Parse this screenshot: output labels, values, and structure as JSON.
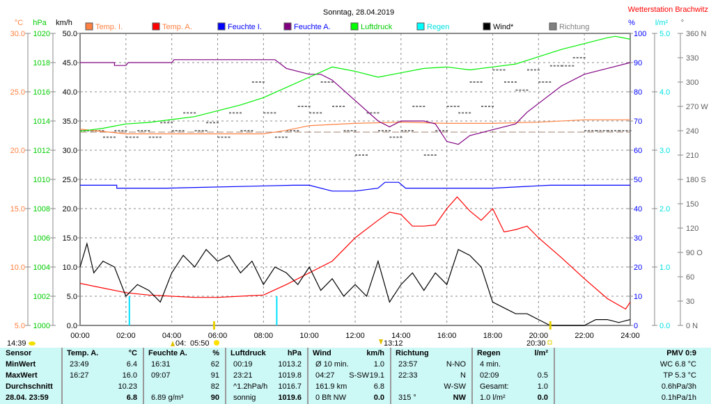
{
  "header": {
    "title": "Sonntag, 28.04.2019",
    "station": "Wetterstation Brachwitz"
  },
  "chart_data": {
    "type": "line",
    "title": "Sonntag, 28.04.2019",
    "xlim": [
      0,
      24
    ],
    "x_ticks": [
      "00:00",
      "02:00",
      "04:00",
      "06:00",
      "08:00",
      "10:00",
      "12:00",
      "14:00",
      "16:00",
      "18:00",
      "20:00",
      "22:00",
      "24:00"
    ],
    "axes": {
      "temp": {
        "unit": "°C",
        "range": [
          5,
          30
        ],
        "ticks": [
          "30.0",
          "25.0",
          "20.0",
          "15.0",
          "10.0",
          "5.0"
        ],
        "color": "#ff8040"
      },
      "pressure": {
        "unit": "hPa",
        "range": [
          1000,
          1020
        ],
        "ticks": [
          "1020",
          "1018",
          "1016",
          "1014",
          "1012",
          "1010",
          "1008",
          "1006",
          "1004",
          "1002",
          "1000"
        ],
        "color": "#00cc00"
      },
      "wind": {
        "unit": "km/h",
        "range": [
          0,
          50
        ],
        "ticks": [
          "50.0",
          "45.0",
          "40.0",
          "35.0",
          "30.0",
          "25.0",
          "20.0",
          "15.0",
          "10.0",
          "5.0",
          "0.0"
        ],
        "color": "#000000"
      },
      "humidity": {
        "unit": "%",
        "range": [
          0,
          100
        ],
        "ticks": [
          "100",
          "90",
          "80",
          "70",
          "60",
          "50",
          "40",
          "30",
          "20",
          "10",
          "0"
        ],
        "color": "#0000ff"
      },
      "rain": {
        "unit": "l/m²",
        "range": [
          0,
          5
        ],
        "ticks": [
          "5.0",
          "4.0",
          "3.0",
          "2.0",
          "1.0",
          "0.0"
        ],
        "color": "#00e0e0"
      },
      "direction": {
        "unit": "°",
        "range": [
          0,
          360
        ],
        "ticks": [
          "360 N",
          "330",
          "300",
          "270 W",
          "240",
          "210",
          "180 S",
          "150",
          "120",
          "90 O",
          "60",
          "30",
          "0 N"
        ],
        "color": "#606060"
      }
    },
    "legend": [
      {
        "name": "Temp. I.",
        "color": "#ff8040"
      },
      {
        "name": "Temp. A.",
        "color": "#ff0000"
      },
      {
        "name": "Feuchte I.",
        "color": "#0000ff"
      },
      {
        "name": "Feuchte A.",
        "color": "#800080"
      },
      {
        "name": "Luftdruck",
        "color": "#00ff00"
      },
      {
        "name": "Regen",
        "color": "#00ffff"
      },
      {
        "name": "Wind*",
        "color": "#000000"
      },
      {
        "name": "Richtung",
        "color": "#808080"
      }
    ],
    "series": [
      {
        "name": "Temp. I.",
        "axis": "temp",
        "color": "#ff8040",
        "points": [
          [
            0,
            21.8
          ],
          [
            1,
            21.6
          ],
          [
            2,
            21.4
          ],
          [
            4,
            21.4
          ],
          [
            6,
            21.4
          ],
          [
            8,
            21.4
          ],
          [
            9,
            21.7
          ],
          [
            10,
            22.1
          ],
          [
            12,
            22.3
          ],
          [
            14,
            22.4
          ],
          [
            16,
            22.3
          ],
          [
            18,
            22.3
          ],
          [
            20,
            22.4
          ],
          [
            22,
            22.6
          ],
          [
            24,
            22.6
          ]
        ]
      },
      {
        "name": "Temp. A.",
        "axis": "temp",
        "color": "#ff0000",
        "points": [
          [
            0,
            8.6
          ],
          [
            1,
            8.2
          ],
          [
            2,
            7.8
          ],
          [
            3,
            7.6
          ],
          [
            4,
            7.5
          ],
          [
            5,
            7.4
          ],
          [
            6,
            7.4
          ],
          [
            7,
            7.5
          ],
          [
            8,
            7.6
          ],
          [
            9,
            8.5
          ],
          [
            10,
            9.5
          ],
          [
            11,
            10.5
          ],
          [
            12,
            12.5
          ],
          [
            13,
            14.0
          ],
          [
            13.5,
            14.7
          ],
          [
            14,
            14.5
          ],
          [
            14.5,
            13.5
          ],
          [
            15,
            13.5
          ],
          [
            15.5,
            13.6
          ],
          [
            16,
            15.0
          ],
          [
            16.45,
            16.0
          ],
          [
            17,
            14.8
          ],
          [
            17.5,
            14.0
          ],
          [
            18,
            15.0
          ],
          [
            18.5,
            13.0
          ],
          [
            19,
            13.2
          ],
          [
            19.5,
            13.5
          ],
          [
            20,
            12.5
          ],
          [
            21,
            10.8
          ],
          [
            22,
            9.0
          ],
          [
            23,
            7.3
          ],
          [
            23.8,
            6.4
          ],
          [
            24,
            7.0
          ]
        ]
      },
      {
        "name": "Feuchte I.",
        "axis": "humidity",
        "color": "#0000ff",
        "points": [
          [
            0,
            48
          ],
          [
            1.6,
            48
          ],
          [
            1.6,
            47
          ],
          [
            3.8,
            47
          ],
          [
            9.3,
            48
          ],
          [
            10,
            48
          ],
          [
            11,
            46
          ],
          [
            12,
            46
          ],
          [
            13,
            47
          ],
          [
            13.3,
            49
          ],
          [
            13.9,
            49
          ],
          [
            14.2,
            47
          ],
          [
            18,
            47
          ],
          [
            20.5,
            48
          ],
          [
            24,
            48
          ]
        ]
      },
      {
        "name": "Feuchte A.",
        "axis": "humidity",
        "color": "#800080",
        "points": [
          [
            0,
            90
          ],
          [
            1.5,
            90
          ],
          [
            1.5,
            89
          ],
          [
            2,
            89
          ],
          [
            2.1,
            90
          ],
          [
            4,
            90
          ],
          [
            4.1,
            91
          ],
          [
            8.5,
            91
          ],
          [
            9,
            88
          ],
          [
            10,
            86
          ],
          [
            10.5,
            86
          ],
          [
            11,
            84
          ],
          [
            12,
            77
          ],
          [
            13,
            70
          ],
          [
            13.5,
            68
          ],
          [
            14,
            70
          ],
          [
            15,
            70
          ],
          [
            15.5,
            69
          ],
          [
            16,
            63
          ],
          [
            16.5,
            62
          ],
          [
            17,
            65
          ],
          [
            18,
            67
          ],
          [
            19,
            69
          ],
          [
            19.5,
            73
          ],
          [
            20,
            76
          ],
          [
            21,
            82
          ],
          [
            22,
            86
          ],
          [
            23,
            88
          ],
          [
            24,
            90
          ]
        ]
      },
      {
        "name": "Luftdruck",
        "axis": "pressure",
        "color": "#00ee00",
        "points": [
          [
            0,
            1013.3
          ],
          [
            1,
            1013.5
          ],
          [
            2,
            1013.8
          ],
          [
            3,
            1013.9
          ],
          [
            4,
            1014.1
          ],
          [
            5,
            1014.3
          ],
          [
            6,
            1014.7
          ],
          [
            7,
            1015.1
          ],
          [
            8,
            1015.6
          ],
          [
            9,
            1016.3
          ],
          [
            10,
            1017.0
          ],
          [
            11,
            1017.7
          ],
          [
            12,
            1017.4
          ],
          [
            13,
            1017.0
          ],
          [
            14,
            1017.3
          ],
          [
            15,
            1017.6
          ],
          [
            16,
            1017.7
          ],
          [
            17,
            1017.5
          ],
          [
            18,
            1017.7
          ],
          [
            19,
            1017.9
          ],
          [
            20,
            1018.4
          ],
          [
            21,
            1018.9
          ],
          [
            22,
            1019.3
          ],
          [
            23,
            1019.7
          ],
          [
            23.35,
            1019.8
          ],
          [
            24,
            1019.6
          ]
        ]
      },
      {
        "name": "Wind*",
        "axis": "wind",
        "color": "#000000",
        "points": [
          [
            0,
            10
          ],
          [
            0.3,
            14
          ],
          [
            0.6,
            9
          ],
          [
            1,
            11
          ],
          [
            1.5,
            10
          ],
          [
            2,
            5
          ],
          [
            2.5,
            7
          ],
          [
            3,
            6
          ],
          [
            3.5,
            4
          ],
          [
            4,
            9
          ],
          [
            4.5,
            12
          ],
          [
            5,
            10
          ],
          [
            5.5,
            13
          ],
          [
            6,
            11
          ],
          [
            6.5,
            12
          ],
          [
            7,
            9
          ],
          [
            7.5,
            11
          ],
          [
            8,
            7
          ],
          [
            8.5,
            10
          ],
          [
            9,
            9
          ],
          [
            9.5,
            7
          ],
          [
            10,
            10
          ],
          [
            10.5,
            6
          ],
          [
            11,
            8
          ],
          [
            11.5,
            5
          ],
          [
            12,
            7
          ],
          [
            12.5,
            5
          ],
          [
            13,
            11
          ],
          [
            13.5,
            4
          ],
          [
            14,
            7
          ],
          [
            14.5,
            9
          ],
          [
            15,
            6
          ],
          [
            15.5,
            9
          ],
          [
            16,
            7
          ],
          [
            16.5,
            13
          ],
          [
            17,
            12
          ],
          [
            17.5,
            10
          ],
          [
            18,
            4
          ],
          [
            18.5,
            3
          ],
          [
            19,
            2
          ],
          [
            19.5,
            2
          ],
          [
            20,
            1
          ],
          [
            20.5,
            0
          ],
          [
            21,
            0
          ],
          [
            21.5,
            0
          ],
          [
            22,
            0
          ],
          [
            22.5,
            1
          ],
          [
            23,
            1
          ],
          [
            23.5,
            0.5
          ],
          [
            24,
            1
          ]
        ]
      }
    ],
    "rain": [
      {
        "x": 2.15,
        "value": 0.5
      },
      {
        "x": 8.58,
        "value": 0.5
      }
    ],
    "direction_points": [
      [
        0,
        240
      ],
      [
        0.5,
        240
      ],
      [
        1,
        232
      ],
      [
        1.5,
        240
      ],
      [
        2,
        232
      ],
      [
        2.5,
        240
      ],
      [
        3,
        232
      ],
      [
        3.5,
        250
      ],
      [
        4,
        240
      ],
      [
        4.5,
        262
      ],
      [
        5,
        240
      ],
      [
        5.5,
        250
      ],
      [
        6,
        232
      ],
      [
        6.5,
        262
      ],
      [
        7,
        240
      ],
      [
        7.5,
        300
      ],
      [
        8,
        262
      ],
      [
        8.5,
        232
      ],
      [
        9,
        240
      ],
      [
        9.5,
        270
      ],
      [
        10,
        262
      ],
      [
        10.5,
        300
      ],
      [
        11,
        270
      ],
      [
        11.5,
        240
      ],
      [
        12,
        210
      ],
      [
        12.5,
        262
      ],
      [
        13,
        240
      ],
      [
        13.5,
        232
      ],
      [
        14,
        240
      ],
      [
        14.5,
        270
      ],
      [
        15,
        210
      ],
      [
        15.5,
        240
      ],
      [
        16,
        270
      ],
      [
        16.5,
        262
      ],
      [
        17,
        300
      ],
      [
        17.5,
        270
      ],
      [
        18,
        315
      ],
      [
        18.5,
        300
      ],
      [
        19,
        290
      ],
      [
        19.5,
        315
      ],
      [
        20,
        300
      ],
      [
        20.5,
        320
      ],
      [
        21,
        320
      ],
      [
        21.5,
        330
      ],
      [
        22,
        240
      ],
      [
        22.5,
        240
      ],
      [
        23,
        240
      ],
      [
        23.5,
        240
      ]
    ],
    "markers": [
      {
        "label": "14:39"
      },
      {
        "label": "04:"
      },
      {
        "label": "05:50"
      },
      {
        "label": "13:12"
      },
      {
        "label": "20:30"
      }
    ]
  },
  "table": {
    "sensor": {
      "head": "Sensor",
      "rows": [
        "MinWert",
        "MaxWert",
        "Durchschnitt",
        "28.04. 23:59"
      ]
    },
    "temp": {
      "head": "Temp. A.",
      "unit": "°C",
      "times": [
        "23:49",
        "16:27",
        "",
        ""
      ],
      "values": [
        "6.4",
        "16.0",
        "10.23",
        "6.8"
      ]
    },
    "hum": {
      "head": "Feuchte A.",
      "unit": "%",
      "times": [
        "16:31",
        "09:07",
        "",
        "6.89 g/m³"
      ],
      "values": [
        "62",
        "91",
        "82",
        "90"
      ]
    },
    "press": {
      "head": "Luftdruck",
      "unit": "hPa",
      "times": [
        "00:19",
        "23:21",
        "^1.2hPa/h",
        "sonnig"
      ],
      "values": [
        "1013.2",
        "1019.8",
        "1016.7",
        "1019.6"
      ]
    },
    "wind": {
      "head": "Wind",
      "unit": "km/h",
      "times": [
        "Ø 10 min.",
        "04:27",
        "161.9 km",
        "0 Bft NW"
      ],
      "mid": [
        "",
        "S-SW",
        "",
        ""
      ],
      "values": [
        "1.0",
        "19.1",
        "6.8",
        "0.0"
      ]
    },
    "dir": {
      "head": "Richtung",
      "times": [
        "23:57",
        "22:33",
        "",
        "315 °"
      ],
      "values": [
        "N-NO",
        "N",
        "W-SW",
        "NW"
      ]
    },
    "rain": {
      "head": "Regen",
      "unit": "l/m²",
      "times": [
        "4 min.",
        "02:09",
        "Gesamt:",
        "1.0 l/m²"
      ],
      "values": [
        "",
        "0.5",
        "1.0",
        "0.0"
      ]
    },
    "pmv": {
      "head": "PMV 0:9",
      "rows": [
        "WC 6.8 °C",
        "TP 5.3 °C",
        "0.6hPa/3h",
        "0.1hPa/1h"
      ]
    }
  }
}
